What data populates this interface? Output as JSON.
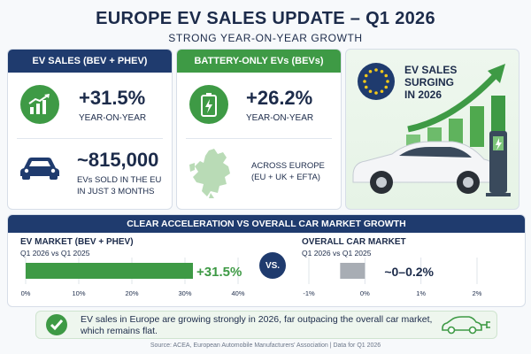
{
  "header": {
    "title": "EUROPE EV SALES UPDATE – Q1 2026",
    "subtitle": "STRONG YEAR-ON-YEAR GROWTH"
  },
  "panel_ev": {
    "heading": "EV SALES (BEV + PHEV)",
    "growth_value": "+31.5%",
    "growth_label": "YEAR-ON-YEAR",
    "units_value": "~815,000",
    "units_label_1": "EVs SOLD IN THE EU",
    "units_label_2": "IN JUST 3 MONTHS"
  },
  "panel_bev": {
    "heading": "BATTERY-ONLY EVs (BEVs)",
    "growth_value": "+26.2%",
    "growth_label": "YEAR-ON-YEAR",
    "region_label_1": "ACROSS EUROPE",
    "region_label_2": "(EU + UK + EFTA)"
  },
  "hero": {
    "line1": "EV SALES",
    "line2": "SURGING",
    "line3": "IN 2026"
  },
  "comparison": {
    "heading": "CLEAR ACCELERATION VS OVERALL CAR MARKET GROWTH",
    "vs_label": "VS.",
    "ev_market": {
      "title": "EV MARKET (BEV + PHEV)",
      "period": "Q1 2026 vs Q1 2025",
      "value_label": "+31.5%",
      "value": 31.5,
      "axis_ticks": [
        "0%",
        "10%",
        "20%",
        "30%",
        "40%"
      ],
      "axis_range": [
        0,
        40
      ]
    },
    "overall_market": {
      "title": "OVERALL CAR MARKET",
      "period": "Q1 2026 vs Q1 2025",
      "value_label": "~0–0.2%",
      "value_range": [
        0,
        0.2
      ],
      "axis_ticks": [
        "-1%",
        "0%",
        "1%",
        "2%"
      ],
      "axis_range": [
        -1,
        2
      ]
    }
  },
  "footer": {
    "message": "EV sales in Europe are growing strongly in 2026, far outpacing the overall car market, which remains flat."
  },
  "source": "Source: ACEA, European Automobile Manufacturers' Association  |  Data for Q1 2026",
  "colors": {
    "navy": "#1f3b6e",
    "green": "#3e9a45",
    "grey_bar": "#a8adb4"
  }
}
